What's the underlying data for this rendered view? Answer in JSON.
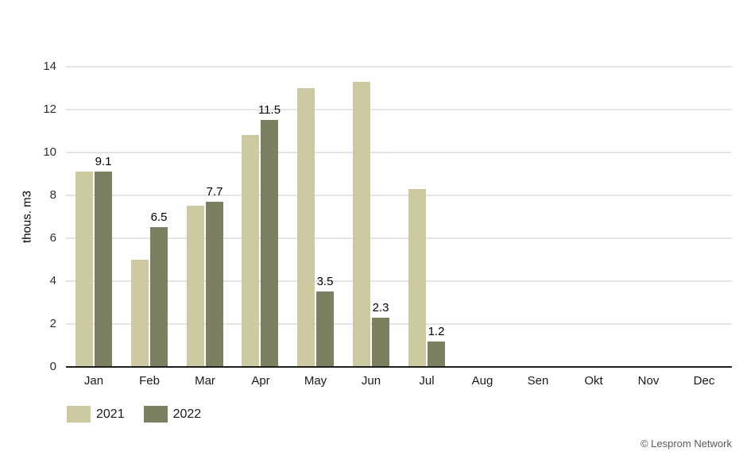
{
  "chart_data": {
    "type": "bar",
    "ylabel": "thous. m3",
    "categories": [
      "Jan",
      "Feb",
      "Mar",
      "Apr",
      "May",
      "Jun",
      "Jul",
      "Aug",
      "Sen",
      "Okt",
      "Nov",
      "Dec"
    ],
    "series": [
      {
        "name": "2021",
        "color": "#cdc9a0",
        "values": [
          9.1,
          5.0,
          7.5,
          10.8,
          13.0,
          13.3,
          8.3,
          0,
          0,
          0,
          0,
          0
        ],
        "show_labels": false
      },
      {
        "name": "2022",
        "color": "#7c8060",
        "values": [
          9.1,
          6.5,
          7.7,
          11.5,
          3.5,
          2.3,
          1.2,
          0,
          0,
          0,
          0,
          0
        ],
        "show_labels": true
      }
    ],
    "data_labels_2022": [
      "9.1",
      "6.5",
      "7.7",
      "11.5",
      "3.5",
      "2.3",
      "1.2"
    ],
    "ylim": [
      0,
      14
    ],
    "ytick_step": 2,
    "grid": "horizontal",
    "legend_position": "bottom-left"
  },
  "colors": {
    "gridline": "#e4e4e4",
    "axis": "#1f1f1f",
    "bar_2021": "#cdc9a0",
    "bar_2022": "#7c8060"
  },
  "footer": {
    "copyright": "© Lesprom Network"
  }
}
